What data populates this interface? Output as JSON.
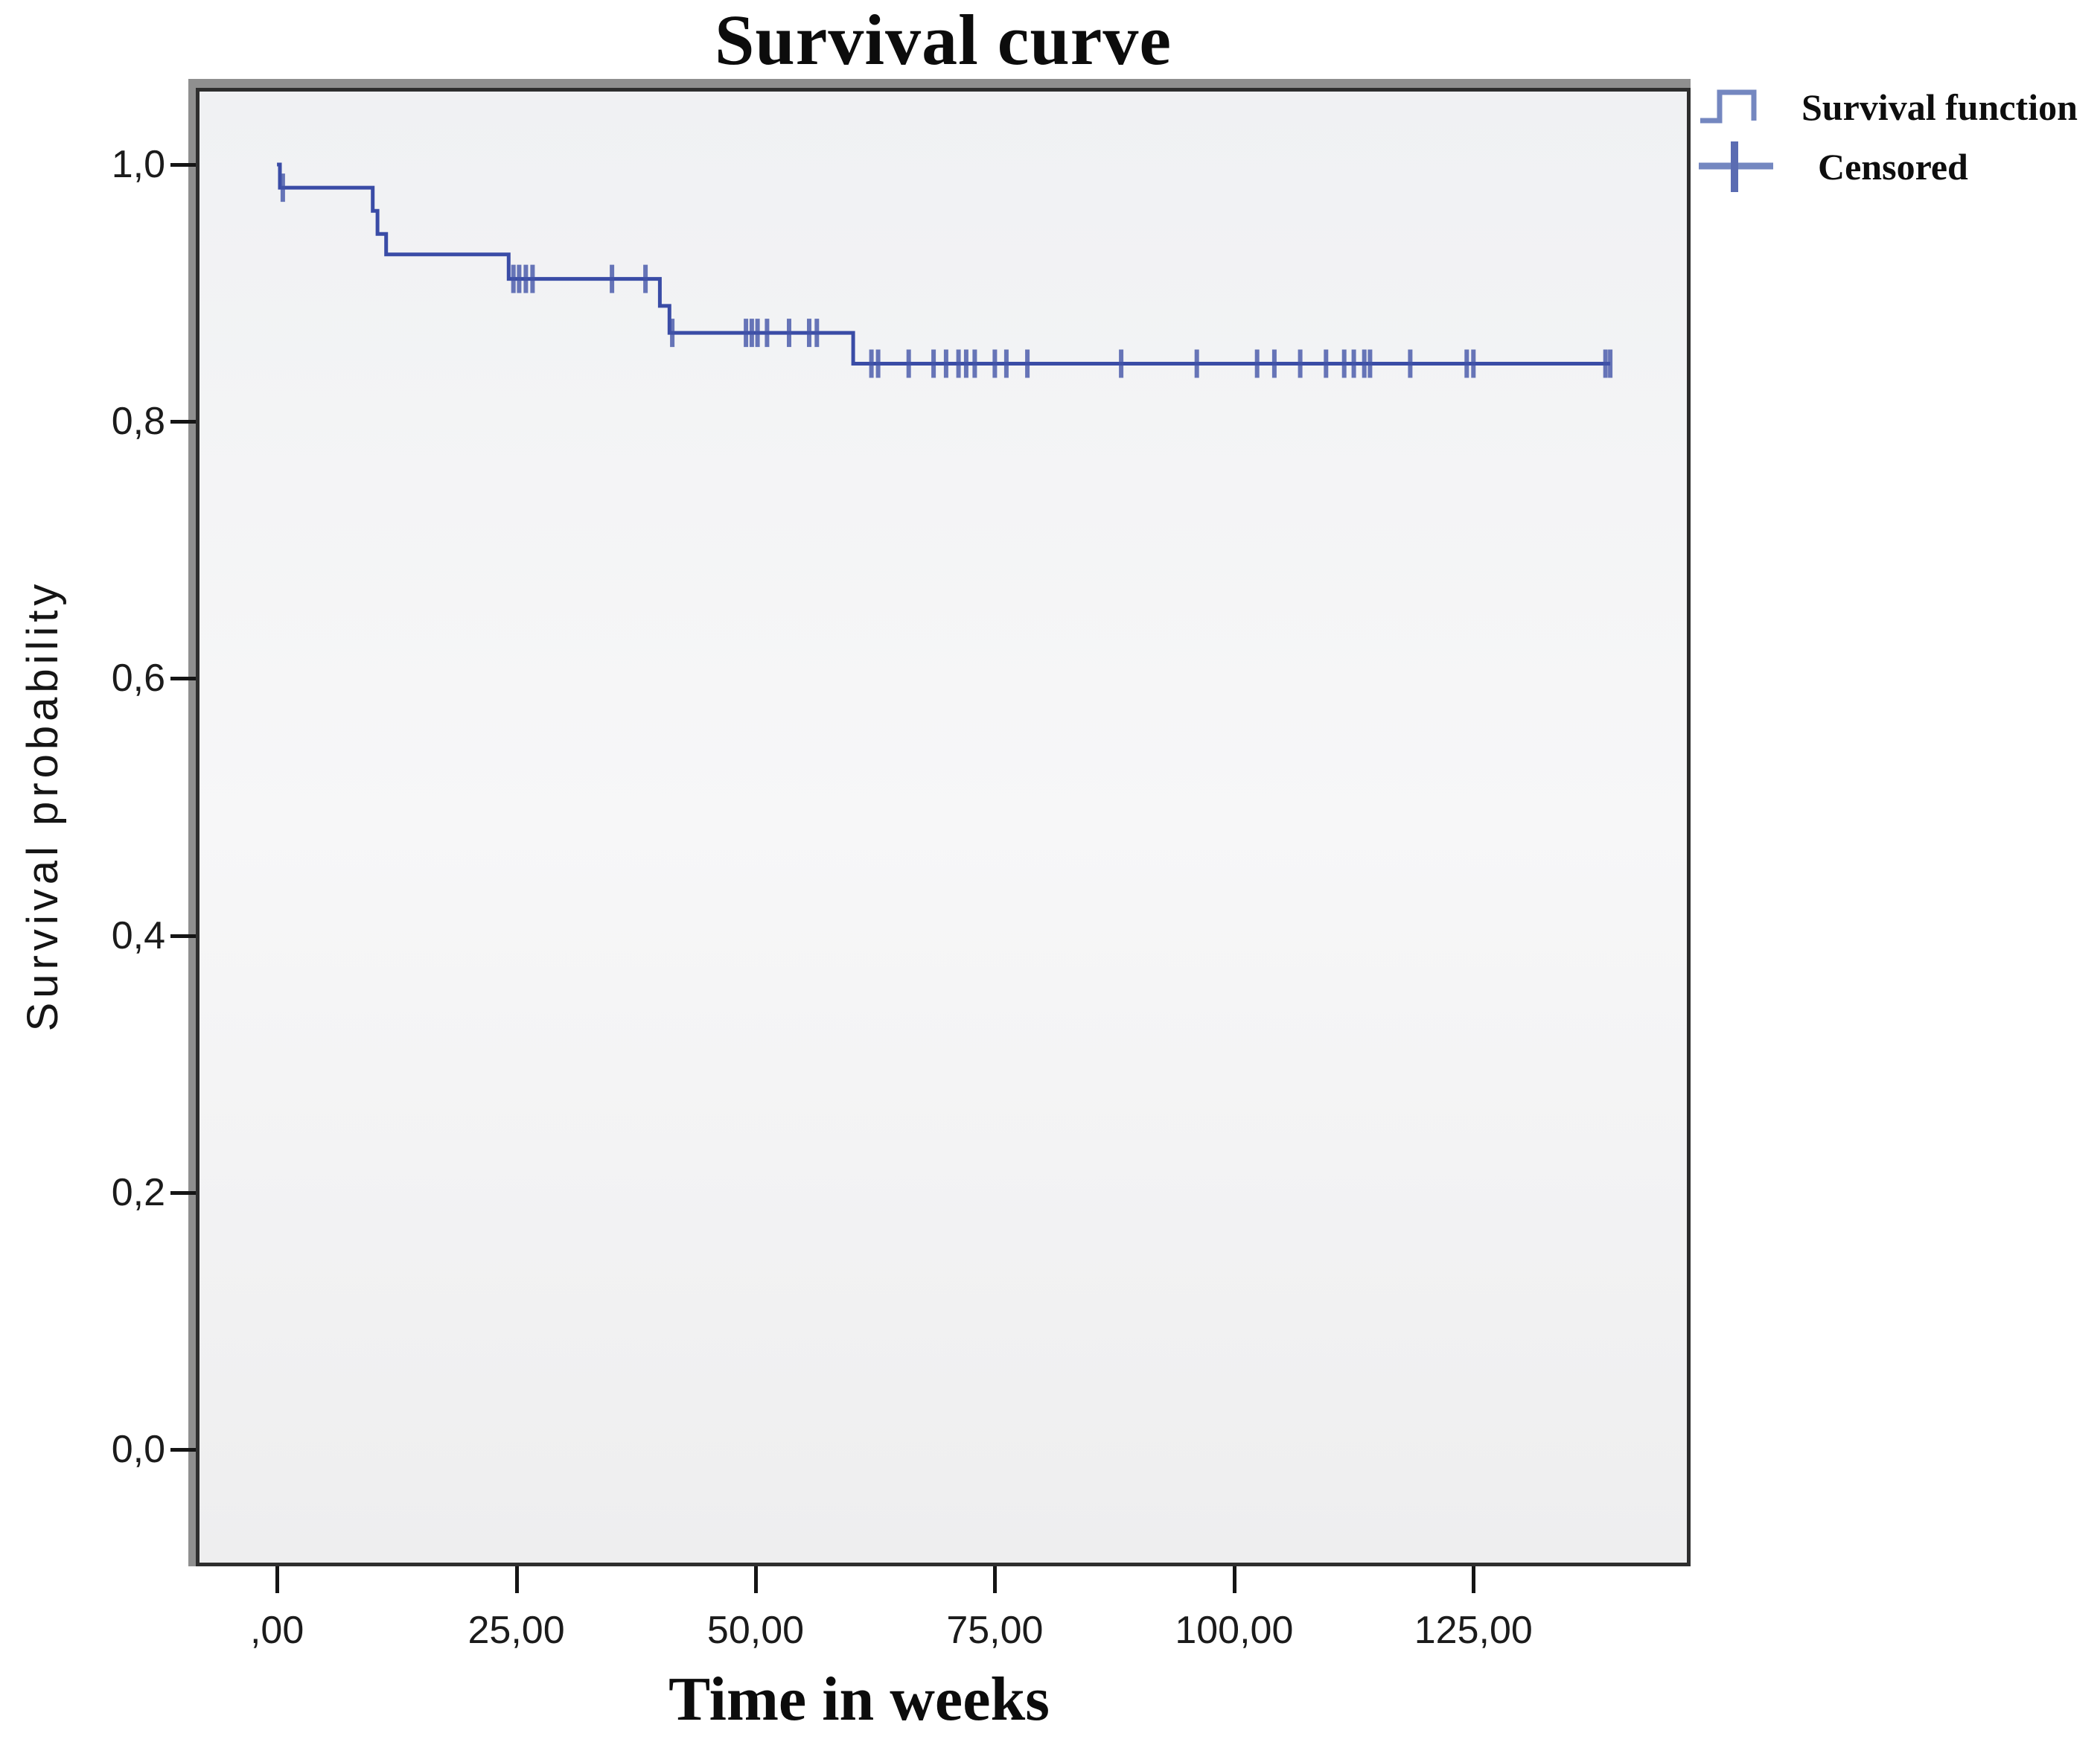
{
  "title": "Survival curve",
  "legend": {
    "items": [
      {
        "label": "Survival function",
        "symbol": "step-line"
      },
      {
        "label": "Censored",
        "symbol": "plus-cross"
      }
    ]
  },
  "colors": {
    "curve": "#3a4ca6",
    "censor_mark": "#4254a8",
    "legend_symbol": "#7487c0",
    "legend_symbol_dark": "#5b6cb2",
    "frame_border": "#2e2e2e",
    "frame_bevel": "#8f8f8f",
    "plot_background": "#f3f3f4",
    "text": "#111111"
  },
  "chart_data": {
    "type": "line",
    "subtype": "kaplan_meier_step",
    "title": "Survival curve",
    "xlabel": "Time in weeks",
    "ylabel": "Survival probability",
    "grid": false,
    "legend_position": "top-right-outside",
    "xlim": [
      -8.1,
      147.3
    ],
    "ylim": [
      -0.0881,
      1.0568
    ],
    "xticks": {
      "values": [
        0,
        25,
        50,
        75,
        100,
        125
      ],
      "labels": [
        ",00",
        "25,00",
        "50,00",
        "75,00",
        "100,00",
        "125,00"
      ]
    },
    "yticks": {
      "values": [
        0.0,
        0.2,
        0.4,
        0.6,
        0.8,
        1.0
      ],
      "labels": [
        "0,0",
        "0,2",
        "0,4",
        "0,6",
        "0,8",
        "1,0"
      ]
    },
    "series": [
      {
        "name": "Survival function",
        "color": "#3a4ca6",
        "steps": [
          [
            0,
            1.0
          ],
          [
            0.3,
            0.982
          ],
          [
            10.0,
            0.964
          ],
          [
            10.5,
            0.946
          ],
          [
            11.4,
            0.93
          ],
          [
            24.2,
            0.911
          ],
          [
            40.0,
            0.89
          ],
          [
            41.0,
            0.869
          ],
          [
            60.2,
            0.845
          ],
          [
            139.3,
            0.845
          ]
        ]
      }
    ],
    "censored": {
      "name": "Censored",
      "color": "#4254a8",
      "points": [
        [
          0.6,
          0.982
        ],
        [
          24.7,
          0.911
        ],
        [
          25.3,
          0.911
        ],
        [
          26.0,
          0.911
        ],
        [
          26.7,
          0.911
        ],
        [
          35.0,
          0.911
        ],
        [
          38.5,
          0.911
        ],
        [
          41.3,
          0.869
        ],
        [
          49.0,
          0.869
        ],
        [
          49.6,
          0.869
        ],
        [
          50.2,
          0.869
        ],
        [
          51.2,
          0.869
        ],
        [
          53.5,
          0.869
        ],
        [
          55.6,
          0.869
        ],
        [
          56.4,
          0.869
        ],
        [
          62.1,
          0.845
        ],
        [
          62.8,
          0.845
        ],
        [
          66.0,
          0.845
        ],
        [
          68.6,
          0.845
        ],
        [
          69.9,
          0.845
        ],
        [
          71.2,
          0.845
        ],
        [
          72.0,
          0.845
        ],
        [
          72.9,
          0.845
        ],
        [
          75.0,
          0.845
        ],
        [
          76.2,
          0.845
        ],
        [
          78.4,
          0.845
        ],
        [
          88.2,
          0.845
        ],
        [
          96.1,
          0.845
        ],
        [
          102.4,
          0.845
        ],
        [
          104.2,
          0.845
        ],
        [
          106.9,
          0.845
        ],
        [
          109.6,
          0.845
        ],
        [
          111.5,
          0.845
        ],
        [
          112.5,
          0.845
        ],
        [
          113.6,
          0.845
        ],
        [
          114.2,
          0.845
        ],
        [
          118.4,
          0.845
        ],
        [
          124.3,
          0.845
        ],
        [
          125.0,
          0.845
        ],
        [
          138.8,
          0.845
        ],
        [
          139.3,
          0.845
        ]
      ]
    }
  }
}
